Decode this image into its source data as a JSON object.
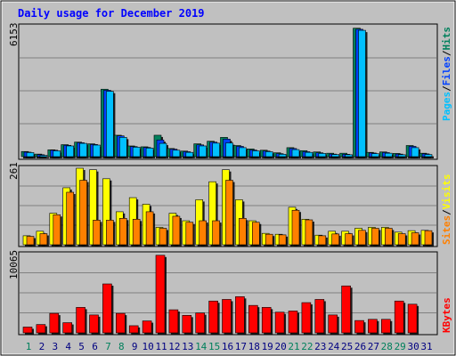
{
  "title": "Daily usage for December 2019",
  "colors": {
    "hits": "#00805c",
    "files": "#0040ff",
    "pages": "#00c0ff",
    "visits": "#ffff00",
    "sites": "#ff8000",
    "kbytes": "#ff0000",
    "background": "#c0c0c0",
    "weekend": "#00805c",
    "weekday": "#000080",
    "title": "#0000ff"
  },
  "labels": {
    "pages": "Pages",
    "files": "Files",
    "hits": "Hits",
    "sites": "Sites",
    "visits": "Visits",
    "kbytes": "KBytes",
    "slash": "/"
  },
  "chart_data": {
    "type": "bar",
    "title": "Daily usage for December 2019",
    "categories": [
      "1",
      "2",
      "3",
      "4",
      "5",
      "6",
      "7",
      "8",
      "9",
      "10",
      "11",
      "12",
      "13",
      "14",
      "15",
      "16",
      "17",
      "18",
      "19",
      "20",
      "21",
      "22",
      "23",
      "24",
      "25",
      "26",
      "27",
      "28",
      "29",
      "30",
      "31"
    ],
    "weekend_days": [
      "1",
      "7",
      "8",
      "14",
      "15",
      "21",
      "22",
      "28",
      "29"
    ],
    "panels": [
      {
        "name": "hits-files-pages",
        "ymax_label": "6153",
        "ylim": [
          0,
          6153
        ],
        "series": [
          {
            "name": "Hits",
            "values": [
              240,
              120,
              320,
              560,
              680,
              600,
              3150,
              1000,
              500,
              460,
              1000,
              380,
              260,
              600,
              720,
              900,
              520,
              360,
              300,
              180,
              420,
              280,
              220,
              160,
              160,
              6000,
              200,
              220,
              150,
              520,
              160
            ]
          },
          {
            "name": "Files",
            "values": [
              210,
              90,
              300,
              530,
              650,
              570,
              3100,
              970,
              470,
              430,
              780,
              350,
              230,
              550,
              680,
              820,
              480,
              310,
              260,
              140,
              380,
              230,
              180,
              120,
              110,
              5950,
              170,
              190,
              120,
              480,
              130
            ]
          },
          {
            "name": "Pages",
            "values": [
              190,
              60,
              270,
              500,
              620,
              540,
              3050,
              900,
              440,
              400,
              620,
              300,
              200,
              500,
              630,
              640,
              420,
              270,
              230,
              110,
              330,
              200,
              150,
              100,
              90,
              5900,
              140,
              160,
              90,
              420,
              100
            ]
          }
        ]
      },
      {
        "name": "visits-sites",
        "ymax_label": "261",
        "ylim": [
          0,
          261
        ],
        "series": [
          {
            "name": "Visits",
            "values": [
              30,
              45,
              105,
              190,
              255,
              250,
              220,
              110,
              157,
              135,
              58,
              105,
              80,
              150,
              210,
              250,
              150,
              80,
              38,
              35,
              125,
              85,
              32,
              45,
              45,
              55,
              58,
              58,
              42,
              47,
              48
            ]
          },
          {
            "name": "Sites",
            "values": [
              28,
              37,
              100,
              175,
              215,
              82,
              82,
              88,
              85,
              110,
              55,
              95,
              75,
              80,
              80,
              215,
              88,
              75,
              35,
              33,
              115,
              83,
              30,
              36,
              37,
              48,
              55,
              55,
              37,
              40,
              47
            ]
          }
        ]
      },
      {
        "name": "kbytes",
        "ymax_label": "10065",
        "ylim": [
          0,
          10065
        ],
        "series": [
          {
            "name": "KBytes",
            "values": [
              730,
              1050,
              2450,
              1280,
              3200,
              2250,
              6150,
              2450,
              900,
              1500,
              9750,
              2900,
              2200,
              2500,
              4000,
              4200,
              4550,
              3450,
              3200,
              2600,
              2750,
              3800,
              4200,
              2250,
              5900,
              1550,
              1700,
              1700,
              4000,
              3600,
              0
            ]
          }
        ]
      }
    ]
  }
}
